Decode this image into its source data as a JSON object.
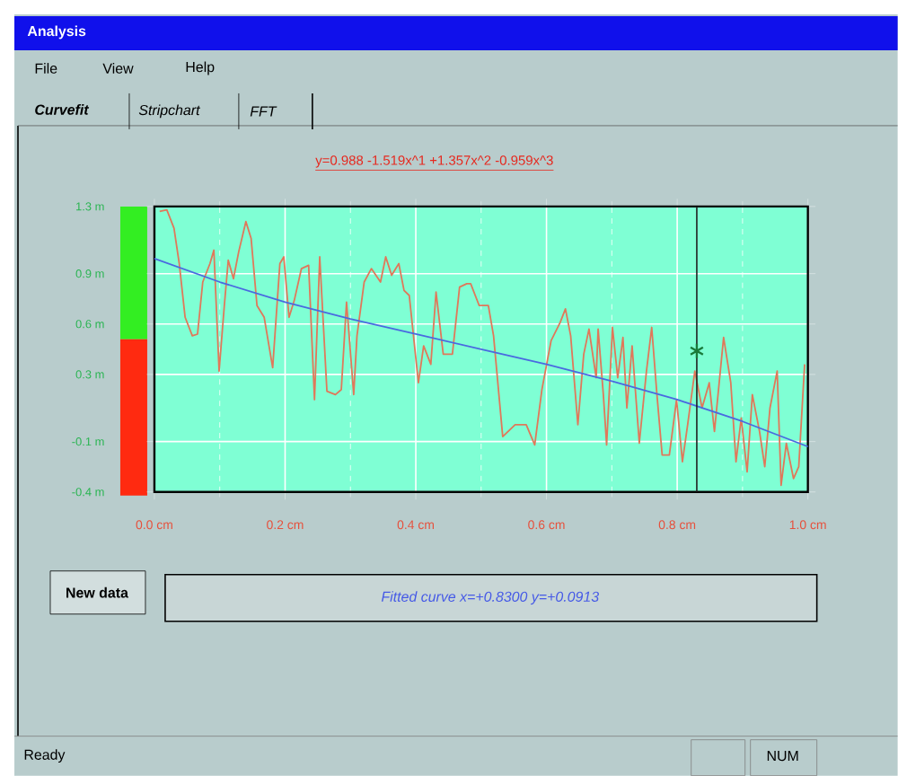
{
  "chart_data": {
    "type": "line",
    "title": "y=0.988 -1.519x^1 +1.357x^2 -0.959x^3",
    "xlim": [
      0,
      1.0
    ],
    "ylim": [
      -0.4,
      1.3
    ],
    "xticks": [
      {
        "value": 0,
        "label": "0.0 cm"
      },
      {
        "value": 0.2,
        "label": "0.2 cm"
      },
      {
        "value": 0.4,
        "label": "0.4 cm"
      },
      {
        "value": 0.6,
        "label": "0.6 cm"
      },
      {
        "value": 0.8,
        "label": "0.8 cm"
      },
      {
        "value": 1.0,
        "label": "1.0 cm"
      }
    ],
    "yticks": [
      {
        "value": 1.3,
        "label": "1.3 m"
      },
      {
        "value": 0.9,
        "label": "0.9 m"
      },
      {
        "value": 0.6,
        "label": "0.6 m"
      },
      {
        "value": 0.3,
        "label": "0.3 m"
      },
      {
        "value": -0.1,
        "label": "-0.1 m"
      },
      {
        "value": -0.4,
        "label": "-0.4 m"
      }
    ],
    "grid": true,
    "series": [
      {
        "color": "#e0785a",
        "x": [
          0.008,
          0.019,
          0.03,
          0.038,
          0.047,
          0.058,
          0.066,
          0.074,
          0.085,
          0.091,
          0.099,
          0.107,
          0.113,
          0.121,
          0.129,
          0.14,
          0.148,
          0.157,
          0.168,
          0.181,
          0.192,
          0.198,
          0.206,
          0.214,
          0.225,
          0.236,
          0.245,
          0.253,
          0.264,
          0.277,
          0.286,
          0.294,
          0.305,
          0.31,
          0.321,
          0.332,
          0.346,
          0.354,
          0.363,
          0.374,
          0.382,
          0.39,
          0.404,
          0.412,
          0.423,
          0.431,
          0.442,
          0.456,
          0.467,
          0.478,
          0.484,
          0.497,
          0.511,
          0.519,
          0.533,
          0.552,
          0.569,
          0.582,
          0.593,
          0.607,
          0.621,
          0.629,
          0.637,
          0.648,
          0.657,
          0.665,
          0.676,
          0.679,
          0.687,
          0.692,
          0.701,
          0.709,
          0.717,
          0.723,
          0.731,
          0.742,
          0.753,
          0.761,
          0.769,
          0.777,
          0.788,
          0.799,
          0.808,
          0.816,
          0.827,
          0.838,
          0.849,
          0.857,
          0.871,
          0.882,
          0.89,
          0.898,
          0.907,
          0.915,
          0.926,
          0.934,
          0.942,
          0.953,
          0.959,
          0.967,
          0.978,
          0.986,
          0.995
        ],
        "values": [
          1.27,
          1.28,
          1.17,
          0.96,
          0.64,
          0.53,
          0.54,
          0.85,
          0.96,
          1.04,
          0.32,
          0.71,
          0.98,
          0.87,
          1.03,
          1.21,
          1.11,
          0.71,
          0.64,
          0.34,
          0.96,
          1.0,
          0.64,
          0.74,
          0.93,
          0.95,
          0.15,
          1.0,
          0.2,
          0.18,
          0.21,
          0.73,
          0.18,
          0.53,
          0.85,
          0.93,
          0.85,
          1.0,
          0.89,
          0.96,
          0.8,
          0.77,
          0.25,
          0.47,
          0.36,
          0.79,
          0.42,
          0.42,
          0.82,
          0.84,
          0.84,
          0.71,
          0.71,
          0.53,
          -0.07,
          0.0,
          0.0,
          -0.12,
          0.21,
          0.5,
          0.61,
          0.69,
          0.53,
          0.0,
          0.42,
          0.57,
          0.28,
          0.57,
          0.18,
          -0.12,
          0.58,
          0.28,
          0.52,
          0.1,
          0.47,
          -0.11,
          0.32,
          0.58,
          0.18,
          -0.18,
          -0.18,
          0.15,
          -0.22,
          0.0,
          0.32,
          0.1,
          0.25,
          -0.04,
          0.52,
          0.25,
          -0.22,
          0.04,
          -0.28,
          0.18,
          -0.04,
          -0.25,
          0.1,
          0.32,
          -0.36,
          -0.11,
          -0.32,
          -0.25,
          0.36
        ]
      },
      {
        "color": "#4a6ae0",
        "x": [
          0,
          0.1,
          0.2,
          0.3,
          0.4,
          0.5,
          0.6,
          0.7,
          0.8,
          0.9,
          1.0
        ],
        "values": [
          0.99,
          0.85,
          0.73,
          0.63,
          0.54,
          0.45,
          0.36,
          0.26,
          0.15,
          0.02,
          -0.13
        ]
      },
      {
        "type": "scatter",
        "marker": "cross",
        "color": "#1a7a3a",
        "x": [
          0.83
        ],
        "values": [
          0.44
        ]
      }
    ],
    "ref_lines": [
      {
        "axis": "x",
        "value": 0.83,
        "color": "#202020"
      }
    ],
    "annotations": [
      "Analysis",
      "File",
      "View",
      "Help",
      "Curvefit",
      "Stripchart",
      "FFT",
      "New data",
      "Fitted curve x=+0.8300  y=+0.0913",
      "Ready",
      "NUM"
    ]
  }
}
